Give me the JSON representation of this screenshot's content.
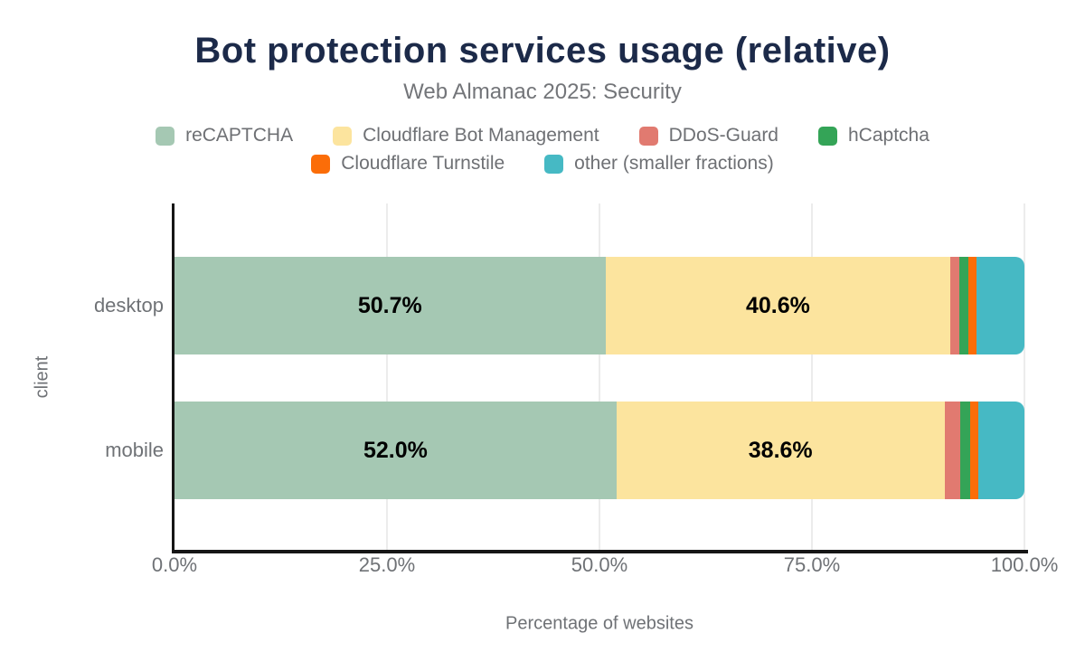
{
  "chart_data": {
    "type": "bar",
    "stacked": true,
    "orientation": "horizontal",
    "title": "Bot protection services usage (relative)",
    "subtitle": "Web Almanac 2025: Security",
    "xlabel": "Percentage of websites",
    "ylabel": "client",
    "categories": [
      "desktop",
      "mobile"
    ],
    "xlim": [
      0,
      100
    ],
    "grid": "vertical",
    "legend_position": "top",
    "x_ticks": [
      {
        "label": "0.0%",
        "value": 0
      },
      {
        "label": "25.0%",
        "value": 25
      },
      {
        "label": "50.0%",
        "value": 50
      },
      {
        "label": "75.0%",
        "value": 75
      },
      {
        "label": "100.0%",
        "value": 100
      }
    ],
    "series": [
      {
        "name": "reCAPTCHA",
        "color": "#a5c8b3",
        "values": [
          50.7,
          52.0
        ],
        "labels": [
          "50.7%",
          "52.0%"
        ]
      },
      {
        "name": "Cloudflare Bot Management",
        "color": "#fce49e",
        "values": [
          40.6,
          38.6
        ],
        "labels": [
          "40.6%",
          "38.6%"
        ]
      },
      {
        "name": "DDoS-Guard",
        "color": "#e17a70",
        "values": [
          1.0,
          1.9
        ],
        "labels": [
          "",
          ""
        ]
      },
      {
        "name": "hCaptcha",
        "color": "#34a457",
        "values": [
          1.1,
          1.1
        ],
        "labels": [
          "",
          ""
        ]
      },
      {
        "name": "Cloudflare Turnstile",
        "color": "#fb6d08",
        "values": [
          1.0,
          1.0
        ],
        "labels": [
          "",
          ""
        ]
      },
      {
        "name": "other (smaller fractions)",
        "color": "#46b9c4",
        "values": [
          5.6,
          5.4
        ],
        "labels": [
          "",
          ""
        ]
      }
    ],
    "legend_rows": [
      [
        0,
        1,
        2,
        3
      ],
      [
        4,
        5
      ]
    ]
  },
  "colors": {
    "title": "#1c2a49",
    "subtitle": "#737579",
    "axis_text": "#6f7276",
    "legend_text": "#6e7074",
    "axis_line": "#161616",
    "gridline": "#ececec",
    "bar_label": "#000000",
    "background": "#ffffff"
  }
}
